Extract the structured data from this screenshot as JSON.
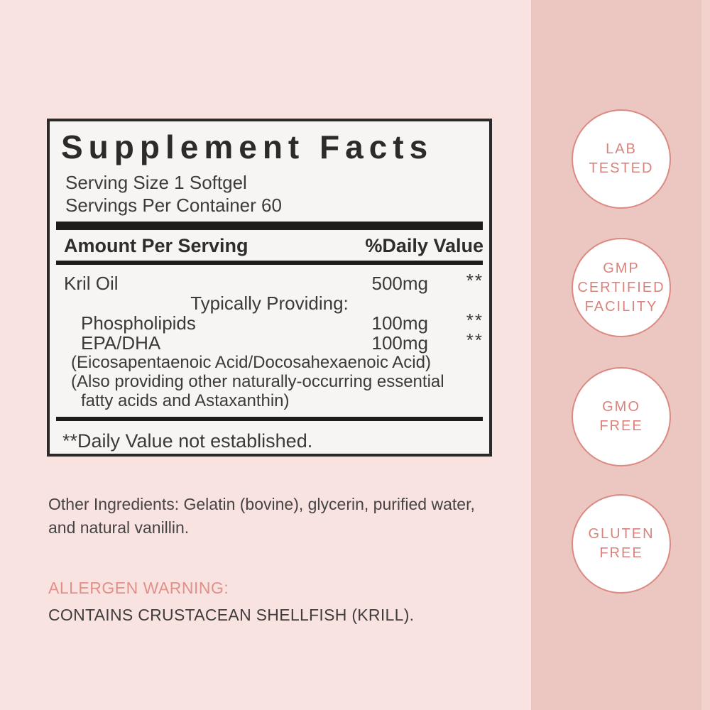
{
  "colors": {
    "page_background": "#f9e3e1",
    "side_strip": "#ecc7c2",
    "panel_background": "#f7f5f4",
    "panel_border": "#2b2a29",
    "dark_text": "#3b3a39",
    "accent_pink": "#d9837c",
    "allergen_pink": "#e2908a"
  },
  "panel": {
    "title": "Supplement Facts",
    "serving_size": "Serving Size 1 Softgel",
    "servings_per_container": "Servings Per Container 60",
    "col_amount_header": "Amount Per Serving",
    "col_dv_header": "%Daily Value",
    "rows": [
      {
        "name": "Kril Oil",
        "amount": "500mg",
        "dv": "**"
      },
      {
        "name": "Phospholipids",
        "amount": "100mg",
        "dv": "**"
      },
      {
        "name": "EPA/DHA",
        "amount": "100mg",
        "dv": "**"
      }
    ],
    "typically_providing": "Typically Providing:",
    "note_lines": [
      "(Eicosapentaenoic Acid/Docosahexaenoic Acid)",
      "(Also providing other naturally-occurring essential",
      "fatty acids and Astaxanthin)"
    ],
    "footnote": "**Daily Value not established."
  },
  "footer": {
    "other_ingredients_lines": [
      "Other Ingredients: Gelatin (bovine), glycerin, purified water,",
      "and natural vanillin."
    ],
    "allergen_warning_label": "ALLERGEN WARNING:",
    "allergen_warning_text": "CONTAINS CRUSTACEAN SHELLFISH (KRILL)."
  },
  "badges": [
    {
      "lines": [
        "LAB",
        "TESTED"
      ]
    },
    {
      "lines": [
        "GMP",
        "CERTIFIED",
        "FACILITY"
      ]
    },
    {
      "lines": [
        "GMO",
        "FREE"
      ]
    },
    {
      "lines": [
        "GLUTEN",
        "FREE"
      ]
    }
  ]
}
